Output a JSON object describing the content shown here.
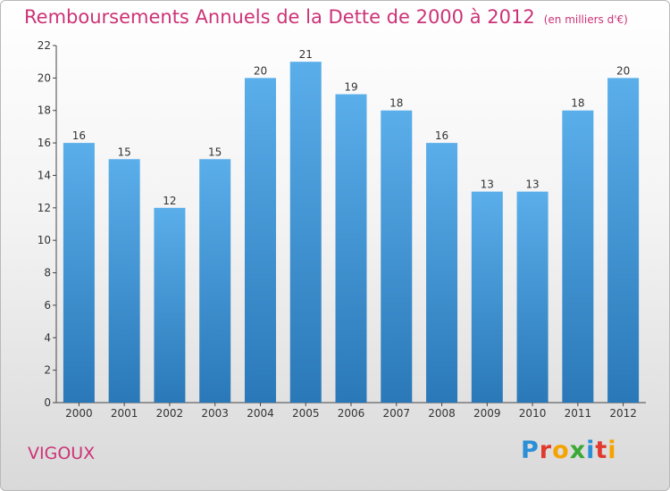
{
  "title": "Remboursements Annuels de la Dette de 2000 à 2012",
  "unit": "(en milliers d'€)",
  "commune": "VIGOUX",
  "logo": {
    "text": "Proxiti",
    "colors": [
      "#2a8fd6",
      "#e03a2e",
      "#f5a300",
      "#3aa935",
      "#2a8fd6",
      "#e03a2e",
      "#f5a300"
    ]
  },
  "colors": {
    "bar_top": "#5aaeea",
    "bar_bottom": "#2a78b8",
    "title": "#cc3377"
  },
  "chart_data": {
    "type": "bar",
    "title": "Remboursements Annuels de la Dette de 2000 à 2012",
    "xlabel": "",
    "ylabel": "",
    "categories": [
      "2000",
      "2001",
      "2002",
      "2003",
      "2004",
      "2005",
      "2006",
      "2007",
      "2008",
      "2009",
      "2010",
      "2011",
      "2012"
    ],
    "values": [
      16,
      15,
      12,
      15,
      20,
      21,
      19,
      18,
      16,
      13,
      13,
      18,
      20
    ],
    "ylim": [
      0,
      22
    ],
    "yticks": [
      0,
      2,
      4,
      6,
      8,
      10,
      12,
      14,
      16,
      18,
      20,
      22
    ],
    "grid": false,
    "legend": "none"
  }
}
